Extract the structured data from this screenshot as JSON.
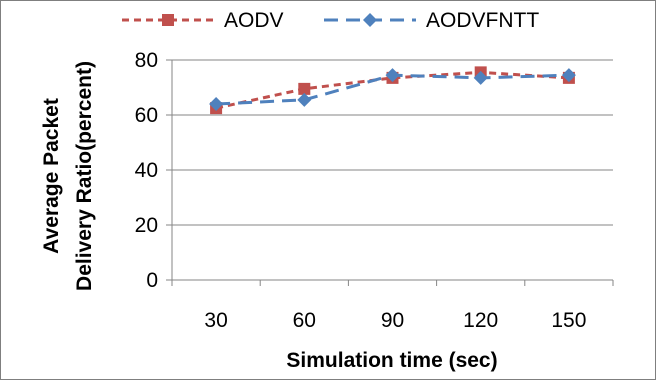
{
  "chart_data": {
    "type": "line",
    "title": "",
    "xlabel": "Simulation time (sec)",
    "ylabel_lines": [
      "Average Packet",
      "Delivery Ratio(percent)"
    ],
    "x": [
      30,
      60,
      90,
      120,
      150
    ],
    "ylim": [
      0,
      80
    ],
    "yticks": [
      0,
      20,
      40,
      60,
      80
    ],
    "grid": "horizontal",
    "legend_position": "top",
    "series": [
      {
        "name": "AODV",
        "values": [
          62.5,
          69.5,
          73.5,
          75.5,
          73.5
        ],
        "color": "#c0504d",
        "marker": "square",
        "dash": "dashed"
      },
      {
        "name": "AODVFNTT",
        "values": [
          64,
          65.5,
          74.5,
          73.5,
          74.5
        ],
        "color": "#4f81bd",
        "marker": "diamond",
        "dash": "long-dashed"
      }
    ]
  }
}
